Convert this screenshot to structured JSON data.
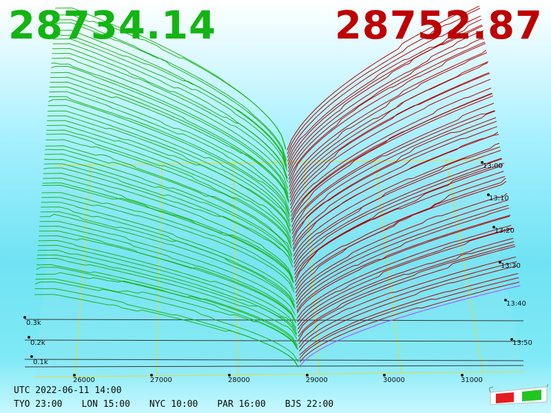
{
  "prices": {
    "bid": "28734.14",
    "ask": "28752.87",
    "bid_color": "#12b512",
    "ask_color": "#c00000"
  },
  "depth_axis": {
    "price_labels": [
      "26000",
      "27000",
      "28000",
      "29000",
      "30000",
      "31000"
    ],
    "volume_labels": [
      "0.1k",
      "0.2k",
      "0.3k"
    ],
    "time_labels": [
      "13:00",
      "13:10",
      "13:20",
      "13:30",
      "13:40",
      "13:50"
    ]
  },
  "clock": {
    "utc": "UTC 2022-06-11 14:00",
    "cities": [
      {
        "label": "TYO 23:00"
      },
      {
        "label": "LON 15:00"
      },
      {
        "label": "NYC 10:00"
      },
      {
        "label": "PAR 16:00"
      },
      {
        "label": "BJS 22:00"
      }
    ]
  },
  "colors": {
    "bid_line": "#19b519",
    "ask_line": "#b00000",
    "grid": "#dede3a",
    "axis": "#222222",
    "latest_ask_line": "#b040ff"
  },
  "glasses": {
    "icon": "3d-glasses-icon"
  }
}
